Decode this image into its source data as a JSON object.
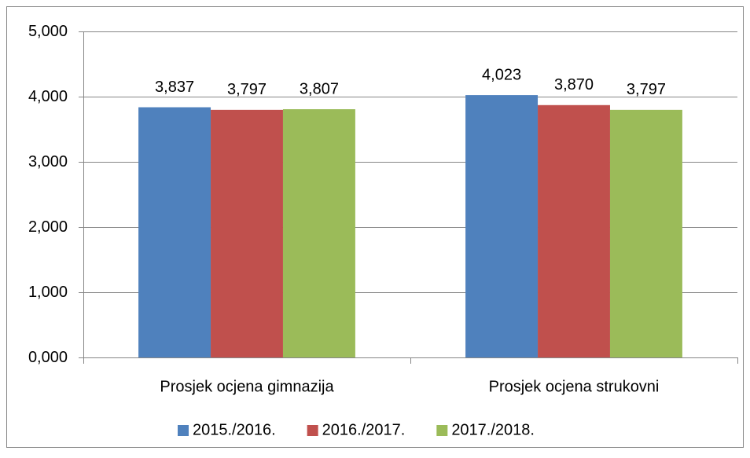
{
  "chart_data": {
    "type": "bar",
    "categories": [
      "Prosjek ocjena gimnazija",
      "Prosjek ocjena strukovni"
    ],
    "series": [
      {
        "name": "2015./2016.",
        "color": "#4f81bd",
        "values": [
          3.837,
          4.023
        ],
        "value_labels": [
          "3,837",
          "4,023"
        ]
      },
      {
        "name": "2016./2017.",
        "color": "#c0504d",
        "values": [
          3.797,
          3.87
        ],
        "value_labels": [
          "3,797",
          "3,870"
        ]
      },
      {
        "name": "2017./2018.",
        "color": "#9bbb59",
        "values": [
          3.807,
          3.797
        ],
        "value_labels": [
          "3,807",
          "3,797"
        ]
      }
    ],
    "ylim": [
      0,
      5
    ],
    "yticks": [
      {
        "value": 0,
        "label": "0,000"
      },
      {
        "value": 1,
        "label": "1,000"
      },
      {
        "value": 2,
        "label": "2,000"
      },
      {
        "value": 3,
        "label": "3,000"
      },
      {
        "value": 4,
        "label": "4,000"
      },
      {
        "value": 5,
        "label": "5,000"
      }
    ],
    "grid": true,
    "legend": "bottom"
  }
}
